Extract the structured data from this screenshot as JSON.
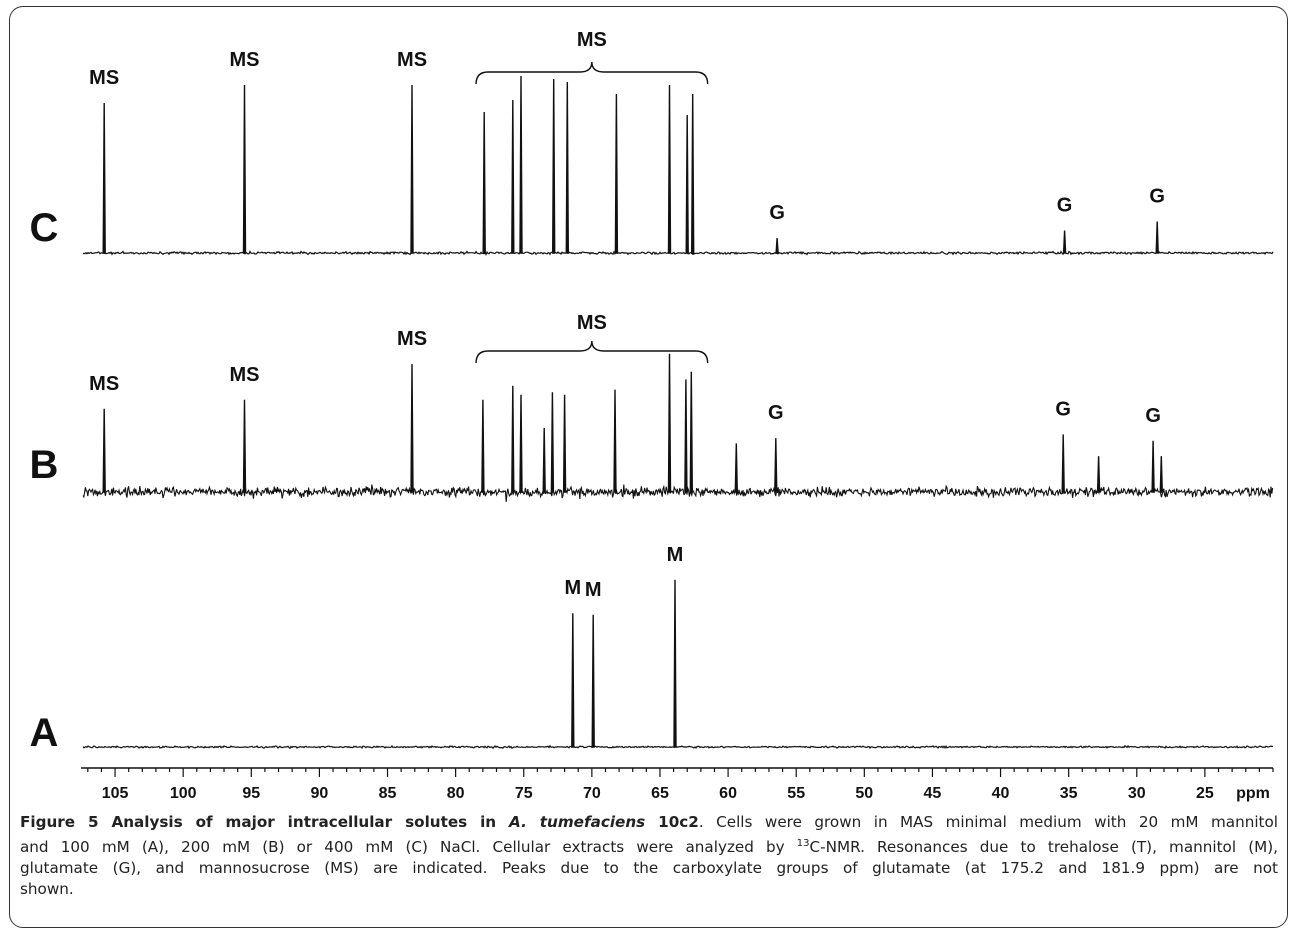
{
  "chart_data": {
    "type": "line",
    "x_axis": {
      "unit_label": "ppm",
      "range": [
        107.5,
        20
      ],
      "reversed": true,
      "major_ticks": [
        105,
        100,
        95,
        90,
        85,
        80,
        75,
        70,
        65,
        60,
        55,
        50,
        45,
        40,
        35,
        30,
        25
      ],
      "tick_labels": [
        "105",
        "100",
        "95",
        "90",
        "85",
        "80",
        "75",
        "70",
        "65",
        "60",
        "55",
        "50",
        "45",
        "40",
        "35",
        "30",
        "25"
      ],
      "minor_tick_step": 1
    },
    "spectra": [
      {
        "name": "C",
        "noise": "low",
        "peaks": [
          {
            "ppm": 105.8,
            "height": 1.0
          },
          {
            "ppm": 95.5,
            "height": 1.12
          },
          {
            "ppm": 83.2,
            "height": 1.12
          },
          {
            "ppm": 77.9,
            "height": 0.94
          },
          {
            "ppm": 75.8,
            "height": 1.02
          },
          {
            "ppm": 75.2,
            "height": 1.18
          },
          {
            "ppm": 72.8,
            "height": 1.16
          },
          {
            "ppm": 71.8,
            "height": 1.14
          },
          {
            "ppm": 68.2,
            "height": 1.06
          },
          {
            "ppm": 64.3,
            "height": 1.12
          },
          {
            "ppm": 63.0,
            "height": 0.92
          },
          {
            "ppm": 62.6,
            "height": 1.06
          },
          {
            "ppm": 56.4,
            "height": 0.1
          },
          {
            "ppm": 35.3,
            "height": 0.15
          },
          {
            "ppm": 28.5,
            "height": 0.21
          }
        ],
        "annotations": [
          {
            "text": "MS",
            "ppm": 105.8
          },
          {
            "text": "MS",
            "ppm": 95.5
          },
          {
            "text": "MS",
            "ppm": 83.2
          },
          {
            "text": "MS",
            "ppm": 70.0,
            "bracket": [
              78.5,
              61.5
            ]
          },
          {
            "text": "G",
            "ppm": 56.4
          },
          {
            "text": "G",
            "ppm": 35.3
          },
          {
            "text": "G",
            "ppm": 28.5
          }
        ]
      },
      {
        "name": "B",
        "noise": "high",
        "peaks": [
          {
            "ppm": 105.8,
            "height": 0.65
          },
          {
            "ppm": 95.5,
            "height": 0.72
          },
          {
            "ppm": 83.2,
            "height": 1.0
          },
          {
            "ppm": 78.0,
            "height": 0.72
          },
          {
            "ppm": 75.8,
            "height": 0.83
          },
          {
            "ppm": 75.2,
            "height": 0.76
          },
          {
            "ppm": 73.5,
            "height": 0.5
          },
          {
            "ppm": 72.9,
            "height": 0.78
          },
          {
            "ppm": 72.0,
            "height": 0.76
          },
          {
            "ppm": 68.3,
            "height": 0.8
          },
          {
            "ppm": 64.3,
            "height": 1.08
          },
          {
            "ppm": 63.1,
            "height": 0.88
          },
          {
            "ppm": 62.7,
            "height": 0.94
          },
          {
            "ppm": 59.4,
            "height": 0.38
          },
          {
            "ppm": 56.5,
            "height": 0.42
          },
          {
            "ppm": 35.4,
            "height": 0.45
          },
          {
            "ppm": 32.8,
            "height": 0.28
          },
          {
            "ppm": 28.8,
            "height": 0.4
          },
          {
            "ppm": 28.2,
            "height": 0.28
          }
        ],
        "annotations": [
          {
            "text": "MS",
            "ppm": 105.8
          },
          {
            "text": "MS",
            "ppm": 95.5
          },
          {
            "text": "MS",
            "ppm": 83.2
          },
          {
            "text": "MS",
            "ppm": 70.0,
            "bracket": [
              78.5,
              61.5
            ]
          },
          {
            "text": "G",
            "ppm": 56.5
          },
          {
            "text": "G",
            "ppm": 35.4
          },
          {
            "text": "G",
            "ppm": 28.8
          }
        ]
      },
      {
        "name": "A",
        "noise": "low",
        "peaks": [
          {
            "ppm": 71.4,
            "height": 0.88
          },
          {
            "ppm": 69.9,
            "height": 0.87
          },
          {
            "ppm": 63.9,
            "height": 1.1
          }
        ],
        "annotations": [
          {
            "text": "M",
            "ppm": 71.4
          },
          {
            "text": "M",
            "ppm": 69.9
          },
          {
            "text": "M",
            "ppm": 63.9
          }
        ]
      }
    ]
  },
  "caption": {
    "figure_label": "Figure 5",
    "title_start": " Analysis of major intracellular solutes in ",
    "organism": "A. tumefaciens",
    "strain": " 10c2",
    "line1_text": ". Cells were grown in MAS minimal medium with 20 mM mannitol",
    "line2_text": "and 100 mM (A), 200 mM (B) or 400 mM (C) NaCl. Cellular extracts were analyzed by ",
    "superscript": "13",
    "line2_tail": "C-NMR. Resonances due to trehalose (T), mannitol (M),",
    "line3_text": "glutamate (G), and mannosucrose (MS) are indicated. Peaks due to the carboxylate groups of glutamate (at 175.2 and 181.9 ppm) are not",
    "line4_text": "shown."
  }
}
